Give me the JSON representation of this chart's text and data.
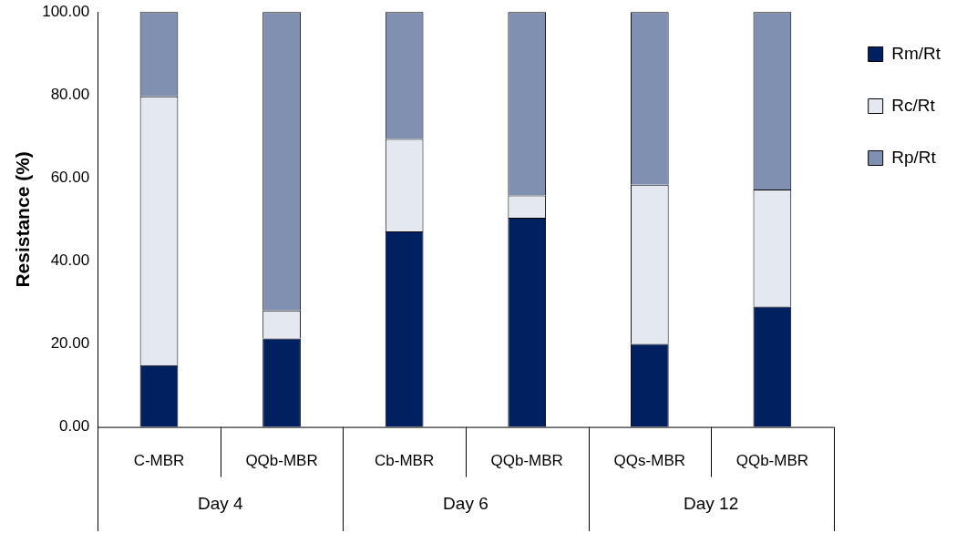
{
  "chart_data": {
    "type": "bar",
    "stacked": true,
    "ylabel": "Resistance (%)",
    "categories": [
      "C-MBR",
      "QQb-MBR",
      "Cb-MBR",
      "QQb-MBR",
      "QQs-MBR",
      "QQb-MBR"
    ],
    "series": [
      {
        "name": "Rm/Rt",
        "color": "#002060",
        "values": [
          14.9,
          21.3,
          47.1,
          50.4,
          20.0,
          29.0
        ]
      },
      {
        "name": "Rc/Rt",
        "color": "#e4e8f0",
        "values": [
          64.8,
          6.8,
          22.3,
          5.4,
          38.4,
          28.2
        ]
      },
      {
        "name": "Rp/Rt",
        "color": "#8090b0",
        "values": [
          20.3,
          71.9,
          30.6,
          44.2,
          41.6,
          42.8
        ]
      }
    ],
    "ylim": [
      0,
      100
    ],
    "yticks": [
      {
        "value": 0,
        "label": "0.00"
      },
      {
        "value": 20,
        "label": "20.00"
      },
      {
        "value": 40,
        "label": "40.00"
      },
      {
        "value": 60,
        "label": "60.00"
      },
      {
        "value": 80,
        "label": "80.00"
      },
      {
        "value": 100,
        "label": "100.00"
      }
    ],
    "grid": false,
    "legend": "right",
    "annotations": [
      "Day 4",
      "Day 6",
      "Day 12"
    ]
  }
}
